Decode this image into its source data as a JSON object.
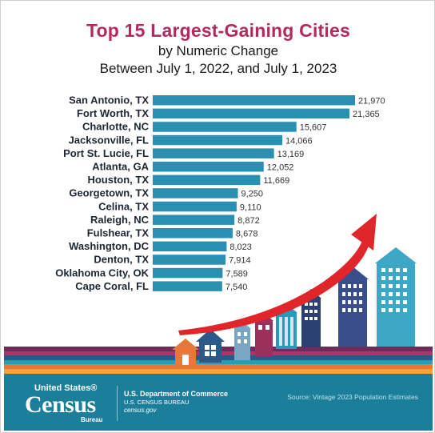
{
  "header": {
    "title": "Top 15 Largest-Gaining Cities",
    "subtitle_1": "by Numeric Change",
    "subtitle_2": "Between July 1, 2022, and July 1, 2023"
  },
  "chart_data": {
    "type": "bar",
    "orientation": "horizontal",
    "title": "Top 15 Largest-Gaining Cities",
    "subtitle": "by Numeric Change Between July 1, 2022, and July 1, 2023",
    "categories": [
      "San Antonio, TX",
      "Fort Worth, TX",
      "Charlotte, NC",
      "Jacksonville, FL",
      "Port St. Lucie, FL",
      "Atlanta, GA",
      "Houston, TX",
      "Georgetown, TX",
      "Celina, TX",
      "Raleigh, NC",
      "Fulshear, TX",
      "Washington, DC",
      "Denton, TX",
      "Oklahoma City, OK",
      "Cape Coral, FL"
    ],
    "values": [
      21970,
      21365,
      15607,
      14066,
      13169,
      12052,
      11669,
      9250,
      9110,
      8872,
      8678,
      8023,
      7914,
      7589,
      7540
    ],
    "value_labels": [
      "21,970",
      "21,365",
      "15,607",
      "14,066",
      "13,169",
      "12,052",
      "11,669",
      "9,250",
      "9,110",
      "8,872",
      "8,678",
      "8,023",
      "7,914",
      "7,589",
      "7,540"
    ],
    "xlim": [
      0,
      21970
    ],
    "grid": false,
    "bar_color": "#2a8fb0"
  },
  "colors": {
    "title": "#b22a60",
    "bar": "#2a8fb0",
    "footer": "#1b7f9c",
    "arrow": "#e0262b"
  },
  "footer": {
    "logo_line_1": "United States®",
    "logo_line_2": "Census",
    "logo_line_3": "Bureau",
    "dept_name": "U.S. Department of Commerce",
    "dept_bureau": "U.S. CENSUS BUREAU",
    "url": "census.gov",
    "source": "Source: Vintage 2023 Population Estimates"
  }
}
